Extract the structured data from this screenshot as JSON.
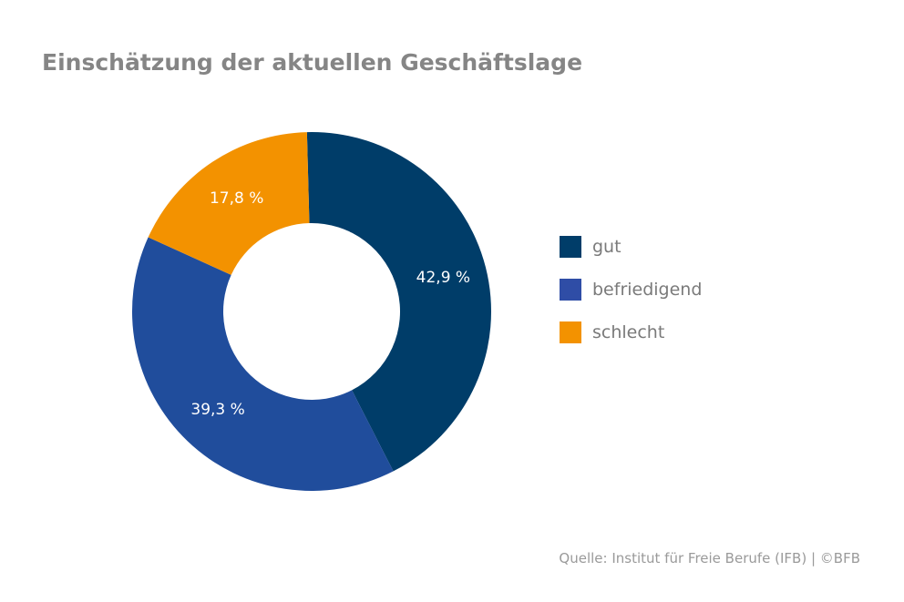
{
  "title": "Einschätzung der aktuellen Geschäftslage",
  "source": "Quelle: Institut für Freie Berufe (IFB)  |  ©BFB",
  "chart_data": {
    "type": "pie",
    "donut": true,
    "title": "Einschätzung der aktuellen Geschäftslage",
    "legend_position": "right",
    "slices": [
      {
        "name": "gut",
        "value": 42.9,
        "label": "42,9 %",
        "color": "#003d69"
      },
      {
        "name": "befriedigend",
        "value": 39.3,
        "label": "39,3 %",
        "color": "#204d9c"
      },
      {
        "name": "schlecht",
        "value": 17.8,
        "label": "17,8 %",
        "color": "#f39200"
      }
    ]
  },
  "legend": [
    {
      "label": "gut",
      "color": "#003d69"
    },
    {
      "label": "befriedigend",
      "color": "#2f4da6"
    },
    {
      "label": "schlecht",
      "color": "#f39200"
    }
  ]
}
